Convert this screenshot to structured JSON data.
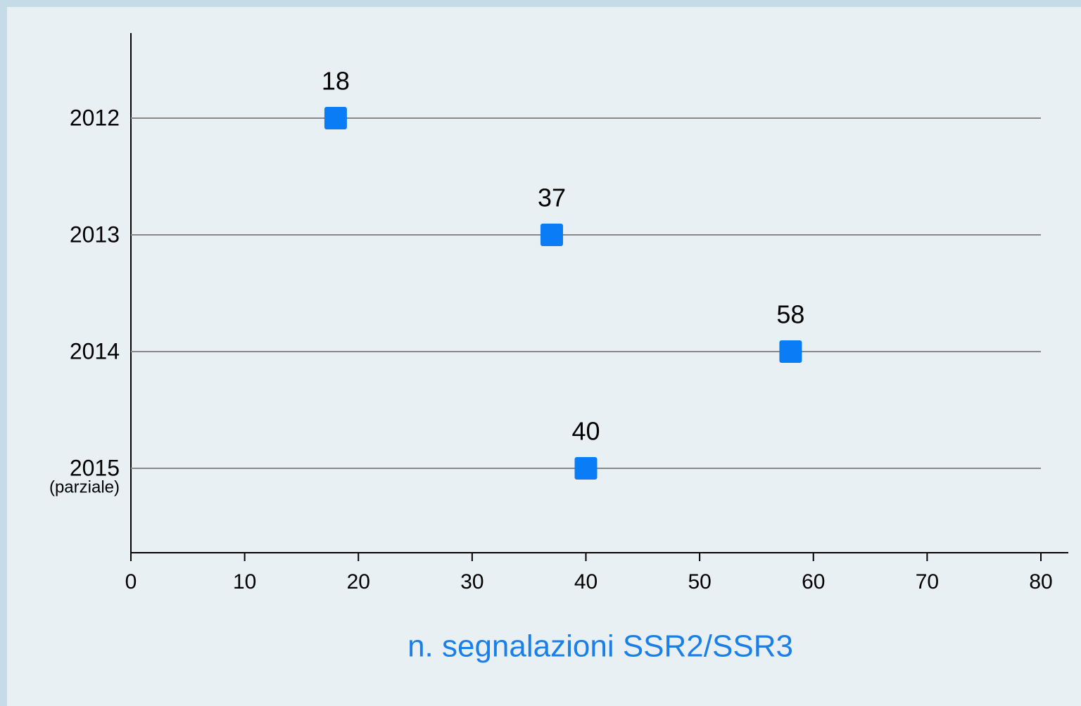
{
  "chart_data": {
    "type": "dot",
    "categories": [
      "2012",
      "2013",
      "2014",
      "2015"
    ],
    "values": [
      18,
      37,
      58,
      40
    ],
    "annotations": [
      "(parziale)"
    ],
    "xlabel": "n. segnalazioni SSR2/SSR3",
    "xlim": [
      0,
      80
    ],
    "xticks": [
      0,
      10,
      20,
      30,
      40,
      50,
      60,
      70,
      80
    ],
    "color": "#0a7cf5",
    "grid": true
  }
}
